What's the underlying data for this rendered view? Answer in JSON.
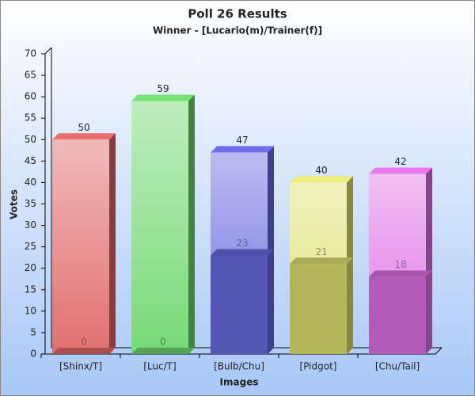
{
  "chart_data": {
    "type": "bar",
    "title": "Poll 26 Results",
    "subtitle": "Winner - [Lucario(m)/Trainer(f)]",
    "x_label": "Images",
    "y_label": "Votes",
    "categories": [
      "[Shinx/T]",
      "[Luc/T]",
      "[Bulb/Chu]",
      "[Pidgot]",
      "[Chu/Tail]"
    ],
    "colors": [
      "#e06868",
      "#70d870",
      "#6a6ae2",
      "#e2e272",
      "#e072e6"
    ],
    "series": [
      {
        "values": [
          50,
          59,
          47,
          40,
          42
        ]
      },
      {
        "values": [
          0,
          0,
          23,
          21,
          18
        ]
      }
    ],
    "ylim": [
      0,
      70
    ],
    "yticks": [
      0,
      5,
      10,
      15,
      20,
      25,
      30,
      35,
      40,
      45,
      50,
      55,
      60,
      65,
      70
    ]
  }
}
